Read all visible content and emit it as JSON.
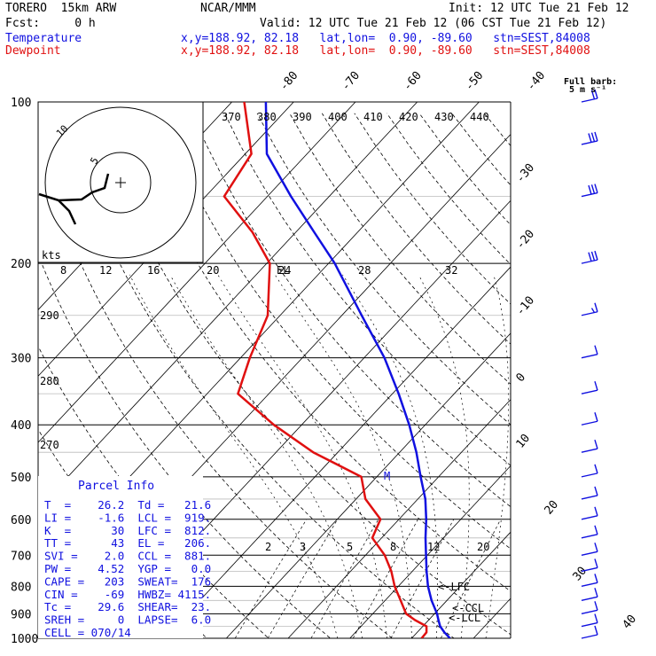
{
  "header": {
    "model": "TORERO  15km ARW",
    "org": "NCAR/MMM",
    "init": "Init: 12 UTC Tue 21 Feb 12",
    "fcst": "Fcst:     0 h",
    "valid": "Valid: 12 UTC Tue 21 Feb 12 (06 CST Tue 21 Feb 12)",
    "temperature_label": "Temperature",
    "dewpoint_label": "Dewpoint",
    "temperature_loc": "x,y=188.92, 82.18   lat,lon=  0.90, -89.60   stn=SEST,84008",
    "dewpoint_loc": "x,y=188.92, 82.18   lat,lon=  0.90, -89.60   stn=SEST,84008",
    "full_barb": "Full barb:",
    "full_barb_units": "5 m s⁻¹"
  },
  "colors": {
    "temperature": "#1010e0",
    "dewpoint": "#e01010",
    "grid": "#000000"
  },
  "parcel_info": {
    "title": "Parcel Info",
    "rows": [
      "T  =    26.2  Td =   21.6",
      "LI =    -1.6  LCL =  919.",
      "K  =      30  LFC =  812.",
      "TT =      43  EL =   206.",
      "SVI =    2.0  CCL =  881.",
      "PW =    4.52  YGP =   0.0",
      "CAPE =   203  SWEAT=  176",
      "CIN =    -69  HWBZ= 4115.",
      "Tc =    29.6  SHEAR=  23.",
      "SREH =     0  LAPSE=  6.0",
      "CELL = 070/14"
    ]
  },
  "chart_data": {
    "type": "line",
    "title": "",
    "diagram": "skew-T log-P",
    "y_axis": "pressure (hPa), log scale",
    "ylim": [
      1000,
      100
    ],
    "pressure_labels": [
      "100",
      "200",
      "300",
      "400",
      "500",
      "600",
      "700",
      "800",
      "900",
      "1000"
    ],
    "temperature_isotherms_top": [
      "-80",
      "-70",
      "-60",
      "-50",
      "-40"
    ],
    "temperature_isotherms_right": [
      "-30",
      "-20",
      "-10",
      "0",
      "10",
      "20",
      "30",
      "40"
    ],
    "theta_labels": [
      "370",
      "380",
      "390",
      "400",
      "410",
      "420",
      "430",
      "440"
    ],
    "theta_left_labels": [
      "290",
      "280",
      "270"
    ],
    "mixing_ratio_labels": [
      "2",
      "3",
      "5",
      "8",
      "12",
      "20"
    ],
    "level_markers": [
      "EL",
      "<-LFC",
      "<-CCL",
      "<-LCL",
      "M"
    ],
    "hodograph": {
      "units_label": "kts",
      "ring_labels": [
        "8",
        "12",
        "16",
        "20",
        "24",
        "28",
        "32"
      ]
    },
    "series": [
      {
        "name": "Temperature",
        "points": [
          [
            1000,
            26.2
          ],
          [
            975,
            24.4
          ],
          [
            950,
            22.8
          ],
          [
            925,
            21.6
          ],
          [
            900,
            20.4
          ],
          [
            850,
            17.5
          ],
          [
            800,
            14.8
          ],
          [
            750,
            12.3
          ],
          [
            700,
            9.8
          ],
          [
            650,
            7.1
          ],
          [
            600,
            4.4
          ],
          [
            550,
            1.2
          ],
          [
            500,
            -2.9
          ],
          [
            450,
            -7.3
          ],
          [
            400,
            -12.6
          ],
          [
            350,
            -19
          ],
          [
            300,
            -26.7
          ],
          [
            250,
            -36.8
          ],
          [
            200,
            -49
          ],
          [
            175,
            -57
          ],
          [
            150,
            -66.2
          ],
          [
            125,
            -76.5
          ],
          [
            100,
            -84.5
          ]
        ]
      },
      {
        "name": "Dewpoint",
        "points": [
          [
            1000,
            21.6
          ],
          [
            975,
            21.5
          ],
          [
            950,
            20.6
          ],
          [
            925,
            17.8
          ],
          [
            900,
            15.4
          ],
          [
            850,
            12.5
          ],
          [
            800,
            9.4
          ],
          [
            750,
            6.6
          ],
          [
            700,
            3.1
          ],
          [
            650,
            -1.5
          ],
          [
            600,
            -3
          ],
          [
            550,
            -8.5
          ],
          [
            500,
            -12.5
          ],
          [
            450,
            -24
          ],
          [
            400,
            -34.5
          ],
          [
            350,
            -45
          ],
          [
            300,
            -48.5
          ],
          [
            250,
            -52
          ],
          [
            200,
            -59.5
          ],
          [
            175,
            -67
          ],
          [
            150,
            -77
          ],
          [
            125,
            -79
          ],
          [
            100,
            -88
          ]
        ]
      }
    ],
    "wind_profile_kt": [
      [
        1000,
        8
      ],
      [
        950,
        9
      ],
      [
        900,
        10
      ],
      [
        850,
        11
      ],
      [
        800,
        12
      ],
      [
        750,
        12
      ],
      [
        700,
        12
      ],
      [
        650,
        11
      ],
      [
        600,
        10
      ],
      [
        550,
        10
      ],
      [
        500,
        11
      ],
      [
        450,
        11
      ],
      [
        400,
        10
      ],
      [
        350,
        9
      ],
      [
        300,
        8
      ],
      [
        250,
        15
      ],
      [
        200,
        30
      ],
      [
        150,
        30
      ],
      [
        120,
        30
      ],
      [
        100,
        20
      ]
    ]
  }
}
